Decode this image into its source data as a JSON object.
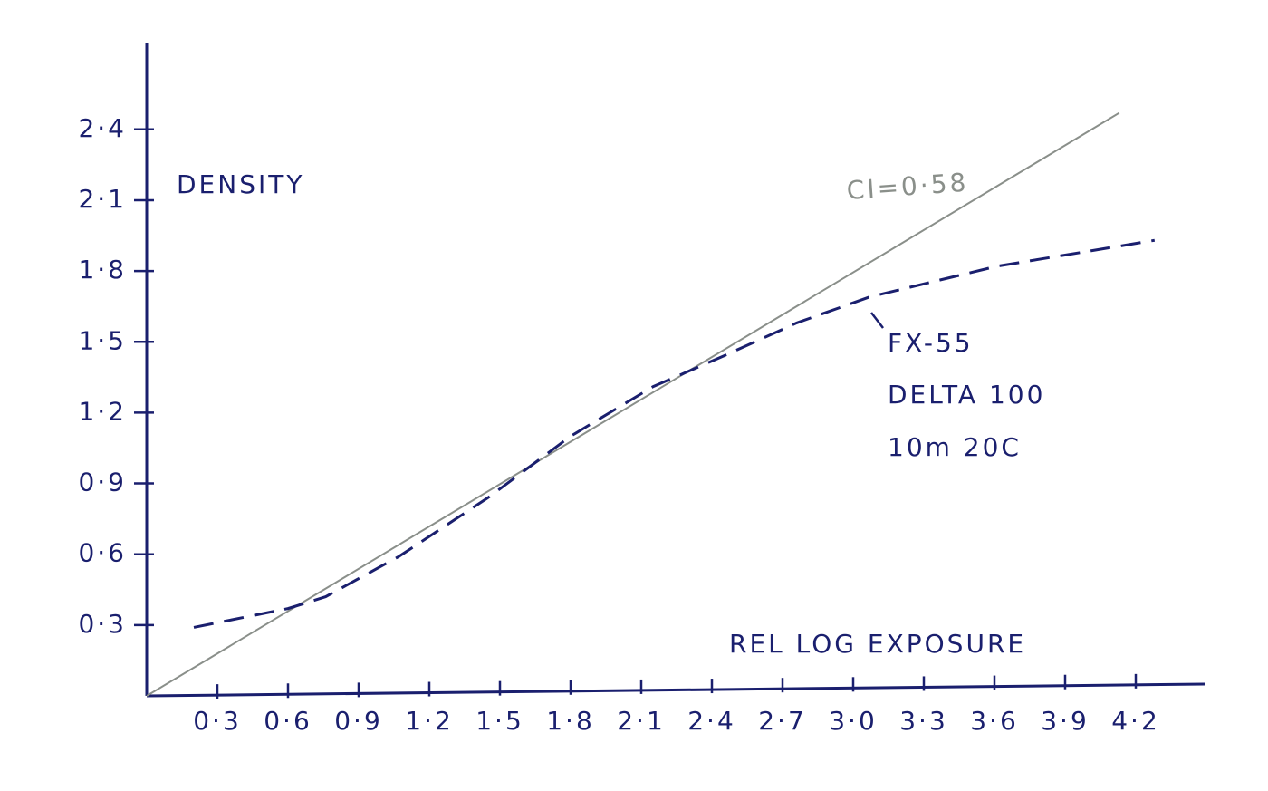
{
  "chart_data": {
    "type": "line",
    "x_label": "REL LOG EXPOSURE",
    "y_label": "DENSITY",
    "xlim": [
      0,
      4.5
    ],
    "ylim": [
      0,
      2.75
    ],
    "xticks": [
      {
        "value": 0.3,
        "label": "0·3"
      },
      {
        "value": 0.6,
        "label": "0·6"
      },
      {
        "value": 0.9,
        "label": "0·9"
      },
      {
        "value": 1.2,
        "label": "1·2"
      },
      {
        "value": 1.5,
        "label": "1·5"
      },
      {
        "value": 1.8,
        "label": "1·8"
      },
      {
        "value": 2.1,
        "label": "2·1"
      },
      {
        "value": 2.4,
        "label": "2·4"
      },
      {
        "value": 2.7,
        "label": "2·7"
      },
      {
        "value": 3.0,
        "label": "3·0"
      },
      {
        "value": 3.3,
        "label": "3·3"
      },
      {
        "value": 3.6,
        "label": "3·6"
      },
      {
        "value": 3.9,
        "label": "3·9"
      },
      {
        "value": 4.2,
        "label": "4·2"
      }
    ],
    "yticks": [
      {
        "value": 0.3,
        "label": "0·3"
      },
      {
        "value": 0.6,
        "label": "0·6"
      },
      {
        "value": 0.9,
        "label": "0·9"
      },
      {
        "value": 1.2,
        "label": "1·2"
      },
      {
        "value": 1.5,
        "label": "1·5"
      },
      {
        "value": 1.8,
        "label": "1·8"
      },
      {
        "value": 2.1,
        "label": "2·1"
      },
      {
        "value": 2.4,
        "label": "2·4"
      }
    ],
    "grid": false,
    "series": [
      {
        "color": "#8a8f8a",
        "dash": false,
        "x": [
          0,
          4.13
        ],
        "values": [
          0,
          2.47
        ]
      },
      {
        "color": "#1a1f6e",
        "dash": true,
        "x": [
          0.2,
          0.6,
          0.76,
          1.07,
          1.45,
          1.8,
          2.15,
          2.45,
          2.76,
          3.07,
          3.61,
          4.28
        ],
        "values": [
          0.29,
          0.37,
          0.42,
          0.59,
          0.84,
          1.1,
          1.31,
          1.44,
          1.58,
          1.69,
          1.82,
          1.93
        ]
      }
    ],
    "annotations": [
      {
        "text": "CI=0·58",
        "color": "#8a8f8a"
      },
      {
        "text": "FX-55",
        "color": "#1a1f6e"
      },
      {
        "text": "DELTA 100",
        "color": "#1a1f6e"
      },
      {
        "text": "10m 20C",
        "color": "#1a1f6e"
      }
    ]
  }
}
